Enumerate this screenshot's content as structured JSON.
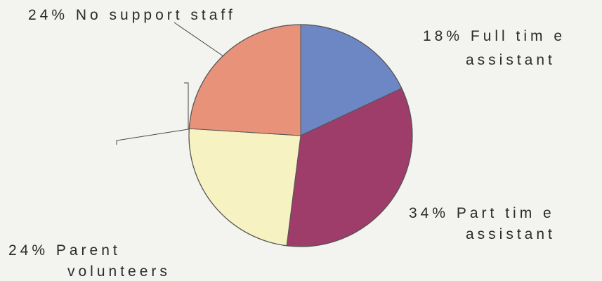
{
  "chart_data": {
    "type": "pie",
    "title": "",
    "slices": [
      {
        "label": "Full time assistant",
        "percent_label": "18%",
        "value": 18,
        "color": "#6d86c4",
        "lines": [
          "18%  Full tim e",
          "assistant"
        ]
      },
      {
        "label": "Part time assistant",
        "percent_label": "34%",
        "value": 34,
        "color": "#9e3c6a",
        "lines": [
          "34%  Part tim e",
          "assistant"
        ]
      },
      {
        "label": "Parent volunteers",
        "percent_label": "24%",
        "value": 24,
        "color": "#f6f2c2",
        "lines": [
          "24%  Parent",
          "volunteers"
        ]
      },
      {
        "label": "No support staff",
        "percent_label": "24%",
        "value": 24,
        "color": "#e9927a",
        "lines": [
          "24%  No support staff"
        ]
      }
    ]
  }
}
